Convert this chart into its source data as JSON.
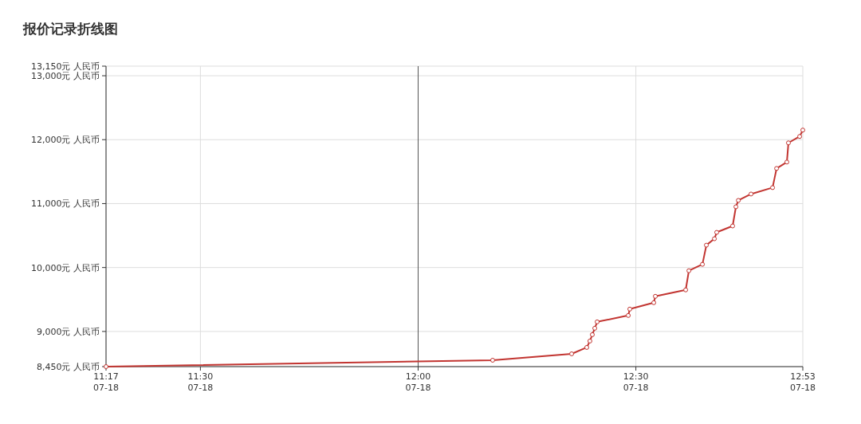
{
  "chart_data": {
    "type": "line",
    "title": "报价记录折线图",
    "x": [
      11.2833,
      12.1711,
      12.3525,
      12.3872,
      12.3944,
      12.4,
      12.4056,
      12.4111,
      12.4825,
      12.4861,
      12.5411,
      12.5447,
      12.6144,
      12.6217,
      12.6528,
      12.6619,
      12.6803,
      12.6856,
      12.7222,
      12.7297,
      12.7353,
      12.7644,
      12.8139,
      12.8231,
      12.8467,
      12.8503,
      12.8761,
      12.8833
    ],
    "series": [
      {
        "color": "#c23531",
        "values": [
          8450,
          8550,
          8650,
          8750,
          8850,
          8950,
          9050,
          9150,
          9250,
          9350,
          9450,
          9550,
          9650,
          9950,
          10050,
          10350,
          10450,
          10550,
          10650,
          10950,
          11050,
          11150,
          11250,
          11550,
          11650,
          11950,
          12050,
          12150
        ]
      }
    ],
    "xlim": [
      11.2833,
      12.8833
    ],
    "xticks": [
      {
        "value": 11.2833,
        "label": "11:17"
      },
      {
        "value": 11.5,
        "label": "11:30"
      },
      {
        "value": 12,
        "label": "12:00"
      },
      {
        "value": 12.5,
        "label": "12:30"
      },
      {
        "value": 12.8833,
        "label": "12:53"
      }
    ],
    "annotations": [
      "07-18",
      "07-18",
      "07-18",
      "07-18",
      "07-18"
    ],
    "ylim": [
      8450,
      13150
    ],
    "yticks": [
      {
        "value": 8450,
        "label": "8,450元 人民币"
      },
      {
        "value": 9000,
        "label": "9,000元 人民币"
      },
      {
        "value": 10000,
        "label": "10,000元 人民币"
      },
      {
        "value": 11000,
        "label": "11,000元 人民币"
      },
      {
        "value": 12000,
        "label": "12,000元 人民币"
      },
      {
        "value": 13000,
        "label": "13,000元 人民币"
      },
      {
        "value": 13150,
        "label": "13,150元 人民币"
      }
    ],
    "ref_lines": [
      {
        "axis": "x",
        "value": 12,
        "color": "#555555"
      }
    ],
    "grid": true,
    "marker": "circle",
    "line_style": "solid"
  }
}
